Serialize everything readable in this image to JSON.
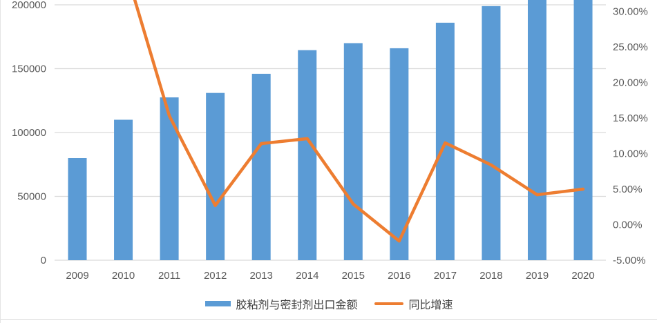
{
  "chart_data": {
    "type": "combo",
    "title": "",
    "categories": [
      "2009",
      "2010",
      "2011",
      "2012",
      "2013",
      "2014",
      "2015",
      "2016",
      "2017",
      "2018",
      "2019",
      "2020"
    ],
    "series": [
      {
        "name": "胶粘剂与密封剂出口金额",
        "type": "bar",
        "yaxis": "left",
        "color": "#5b9bd5",
        "values": [
          80000,
          110000,
          127500,
          131000,
          146000,
          164500,
          170000,
          166000,
          186000,
          199000,
          210000,
          220000
        ]
      },
      {
        "name": "同比增速",
        "type": "line",
        "yaxis": "right",
        "unit": "percent",
        "color": "#ed7d31",
        "values": [
          null,
          37.0,
          15.3,
          2.7,
          11.4,
          12.1,
          2.9,
          -2.3,
          11.5,
          8.4,
          4.2,
          5.0
        ]
      }
    ],
    "left_axis": {
      "tick_labels": [
        "0",
        "50000",
        "100000",
        "150000",
        "200000"
      ],
      "tick_values": [
        0,
        50000,
        100000,
        150000,
        200000
      ]
    },
    "right_axis": {
      "tick_labels": [
        "-5.00%",
        "0.00%",
        "5.00%",
        "10.00%",
        "15.00%",
        "20.00%",
        "25.00%",
        "30.00%"
      ],
      "tick_values": [
        -5,
        0,
        5,
        10,
        15,
        20,
        25,
        30
      ]
    },
    "legend_position": "bottom",
    "grid": true,
    "cropped_top": true
  },
  "colors": {
    "bar": "#5b9bd5",
    "line": "#ed7d31",
    "gridline": "#d9d9d9",
    "axis_text": "#595959",
    "legend_text": "#3f3f3f"
  },
  "legend": {
    "bar_label": "胶粘剂与密封剂出口金额",
    "line_label": "同比增速"
  }
}
